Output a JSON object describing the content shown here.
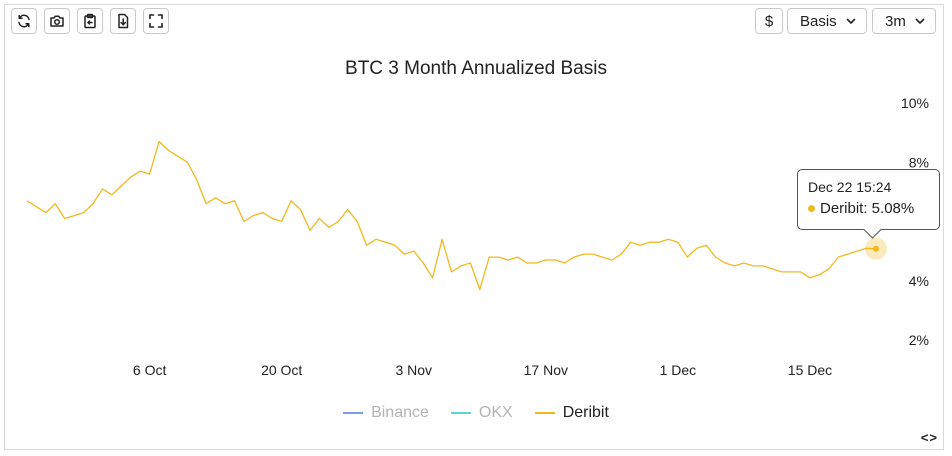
{
  "toolbar": {
    "buttons": [
      "refresh-icon",
      "camera-icon",
      "clipboard-icon",
      "download-icon",
      "fullscreen-icon"
    ],
    "currency": "$",
    "metric": "Basis",
    "range": "3m"
  },
  "tooltip": {
    "time": "Dec 22 15:24",
    "series": "Deribit",
    "value": "5.08%",
    "label": "Deribit: 5.08%"
  },
  "colors": {
    "binance": "#7b9ee6",
    "okx": "#5fd3d3",
    "deribit": "#f2b81f"
  },
  "code_toggle": "<>",
  "chart_data": {
    "type": "line",
    "title": "BTC 3 Month Annualized Basis",
    "xlabel": "",
    "ylabel": "",
    "x_start": "2024-09-23",
    "x_end": "2024-12-22",
    "xticks": [
      {
        "date": "2024-10-06",
        "label": "6 Oct"
      },
      {
        "date": "2024-10-20",
        "label": "20 Oct"
      },
      {
        "date": "2024-11-03",
        "label": "3 Nov"
      },
      {
        "date": "2024-11-17",
        "label": "17 Nov"
      },
      {
        "date": "2024-12-01",
        "label": "1 Dec"
      },
      {
        "date": "2024-12-15",
        "label": "15 Dec"
      }
    ],
    "yticks": [
      2,
      4,
      8,
      10
    ],
    "ytick_labels": [
      "2%",
      "4%",
      "8%",
      "10%"
    ],
    "ylim": [
      2,
      10
    ],
    "grid": false,
    "legend_position": "bottom",
    "series": [
      {
        "name": "Binance",
        "visible": false,
        "points": []
      },
      {
        "name": "OKX",
        "visible": false,
        "points": []
      },
      {
        "name": "Deribit",
        "visible": true,
        "points": [
          [
            "2024-09-23",
            6.7
          ],
          [
            "2024-09-24",
            6.5
          ],
          [
            "2024-09-25",
            6.3
          ],
          [
            "2024-09-26",
            6.6
          ],
          [
            "2024-09-27",
            6.1
          ],
          [
            "2024-09-28",
            6.2
          ],
          [
            "2024-09-29",
            6.3
          ],
          [
            "2024-09-30",
            6.6
          ],
          [
            "2024-10-01",
            7.1
          ],
          [
            "2024-10-02",
            6.9
          ],
          [
            "2024-10-03",
            7.2
          ],
          [
            "2024-10-04",
            7.5
          ],
          [
            "2024-10-05",
            7.7
          ],
          [
            "2024-10-06",
            7.6
          ],
          [
            "2024-10-07",
            8.7
          ],
          [
            "2024-10-08",
            8.4
          ],
          [
            "2024-10-09",
            8.2
          ],
          [
            "2024-10-10",
            8.0
          ],
          [
            "2024-10-11",
            7.4
          ],
          [
            "2024-10-12",
            6.6
          ],
          [
            "2024-10-13",
            6.8
          ],
          [
            "2024-10-14",
            6.6
          ],
          [
            "2024-10-15",
            6.7
          ],
          [
            "2024-10-16",
            6.0
          ],
          [
            "2024-10-17",
            6.2
          ],
          [
            "2024-10-18",
            6.3
          ],
          [
            "2024-10-19",
            6.1
          ],
          [
            "2024-10-20",
            6.0
          ],
          [
            "2024-10-21",
            6.7
          ],
          [
            "2024-10-22",
            6.4
          ],
          [
            "2024-10-23",
            5.7
          ],
          [
            "2024-10-24",
            6.1
          ],
          [
            "2024-10-25",
            5.8
          ],
          [
            "2024-10-26",
            6.0
          ],
          [
            "2024-10-27",
            6.4
          ],
          [
            "2024-10-28",
            6.0
          ],
          [
            "2024-10-29",
            5.2
          ],
          [
            "2024-10-30",
            5.4
          ],
          [
            "2024-10-31",
            5.3
          ],
          [
            "2024-11-01",
            5.2
          ],
          [
            "2024-11-02",
            4.9
          ],
          [
            "2024-11-03",
            5.0
          ],
          [
            "2024-11-04",
            4.6
          ],
          [
            "2024-11-05",
            4.1
          ],
          [
            "2024-11-06",
            5.4
          ],
          [
            "2024-11-07",
            4.3
          ],
          [
            "2024-11-08",
            4.5
          ],
          [
            "2024-11-09",
            4.6
          ],
          [
            "2024-11-10",
            3.7
          ],
          [
            "2024-11-11",
            4.8
          ],
          [
            "2024-11-12",
            4.8
          ],
          [
            "2024-11-13",
            4.7
          ],
          [
            "2024-11-14",
            4.8
          ],
          [
            "2024-11-15",
            4.6
          ],
          [
            "2024-11-16",
            4.6
          ],
          [
            "2024-11-17",
            4.7
          ],
          [
            "2024-11-18",
            4.7
          ],
          [
            "2024-11-19",
            4.6
          ],
          [
            "2024-11-20",
            4.8
          ],
          [
            "2024-11-21",
            4.9
          ],
          [
            "2024-11-22",
            4.9
          ],
          [
            "2024-11-23",
            4.8
          ],
          [
            "2024-11-24",
            4.7
          ],
          [
            "2024-11-25",
            4.9
          ],
          [
            "2024-11-26",
            5.3
          ],
          [
            "2024-11-27",
            5.2
          ],
          [
            "2024-11-28",
            5.3
          ],
          [
            "2024-11-29",
            5.3
          ],
          [
            "2024-11-30",
            5.4
          ],
          [
            "2024-12-01",
            5.3
          ],
          [
            "2024-12-02",
            4.8
          ],
          [
            "2024-12-03",
            5.1
          ],
          [
            "2024-12-04",
            5.2
          ],
          [
            "2024-12-05",
            4.8
          ],
          [
            "2024-12-06",
            4.6
          ],
          [
            "2024-12-07",
            4.5
          ],
          [
            "2024-12-08",
            4.6
          ],
          [
            "2024-12-09",
            4.5
          ],
          [
            "2024-12-10",
            4.5
          ],
          [
            "2024-12-11",
            4.4
          ],
          [
            "2024-12-12",
            4.3
          ],
          [
            "2024-12-13",
            4.3
          ],
          [
            "2024-12-14",
            4.3
          ],
          [
            "2024-12-15",
            4.1
          ],
          [
            "2024-12-16",
            4.2
          ],
          [
            "2024-12-17",
            4.4
          ],
          [
            "2024-12-18",
            4.8
          ],
          [
            "2024-12-19",
            4.9
          ],
          [
            "2024-12-20",
            5.0
          ],
          [
            "2024-12-21",
            5.1
          ],
          [
            "2024-12-22",
            5.08
          ]
        ]
      }
    ]
  }
}
